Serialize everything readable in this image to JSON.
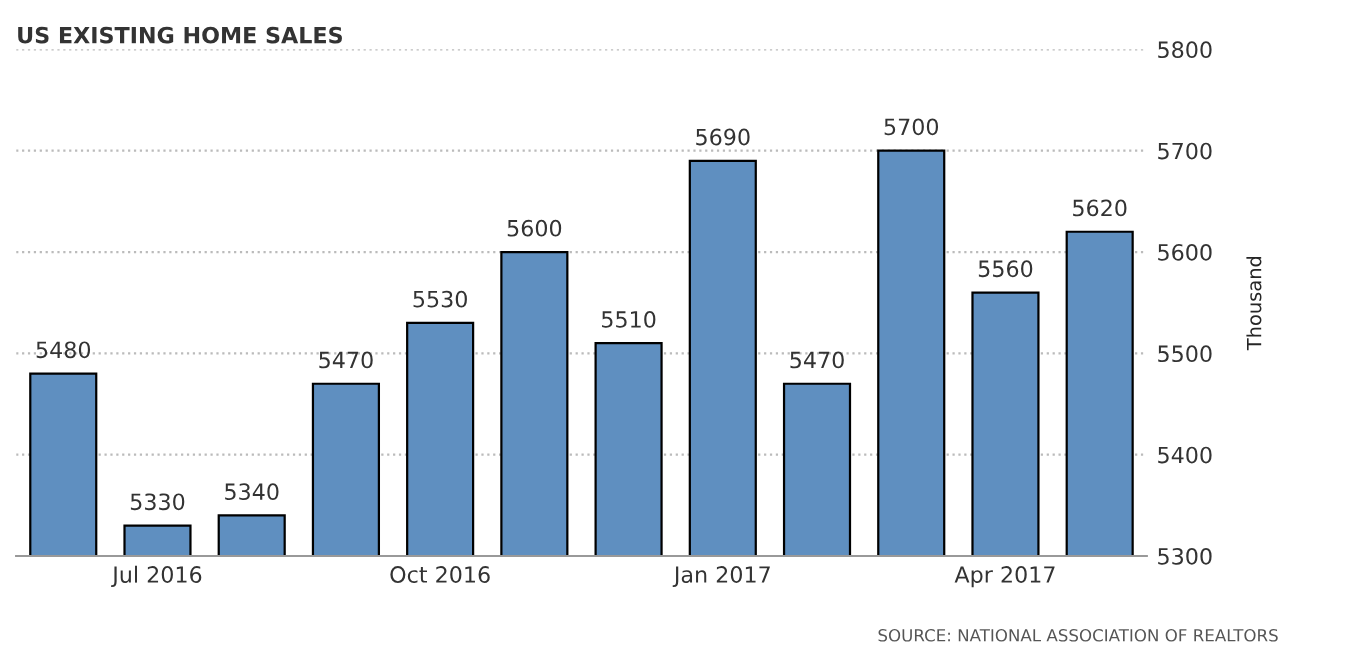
{
  "chart_data": {
    "type": "bar",
    "title": "US EXISTING HOME SALES",
    "categories": [
      null,
      "Jul 2016",
      null,
      null,
      "Oct 2016",
      null,
      null,
      "Jan 2017",
      null,
      null,
      "Apr 2017",
      null
    ],
    "values": [
      5480,
      5330,
      5340,
      5470,
      5530,
      5600,
      5510,
      5690,
      5470,
      5700,
      5560,
      5620
    ],
    "color": "#5f8fc0",
    "ylim": [
      5300,
      5800
    ],
    "yticks": [
      5300,
      5400,
      5500,
      5600,
      5700,
      5800
    ],
    "ylabel": "Thousand",
    "grid": "y",
    "data_labels": true,
    "annotations": [
      "SOURCE: NATIONAL ASSOCIATION OF REALTORS"
    ]
  }
}
